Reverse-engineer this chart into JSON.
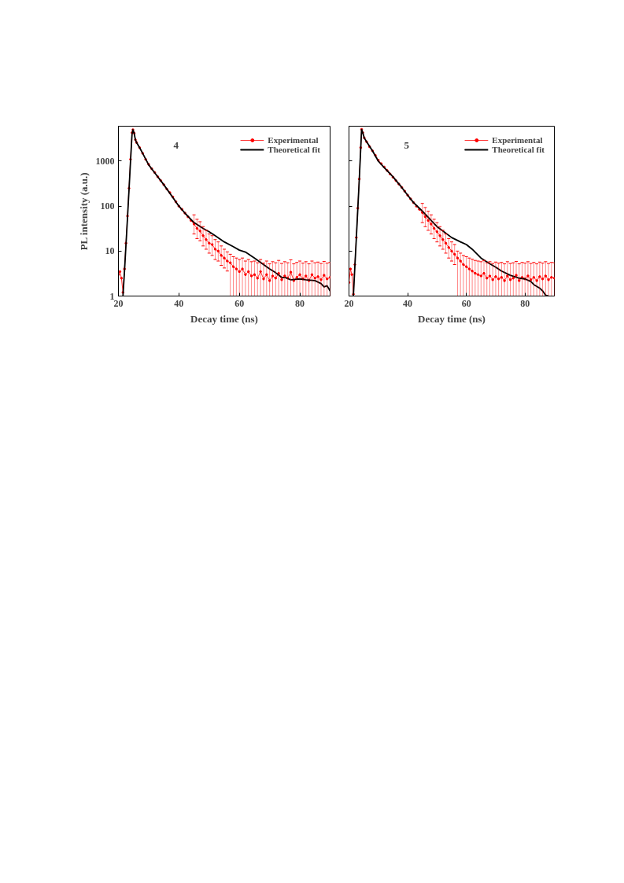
{
  "chart_data": [
    {
      "type": "line",
      "annotations": [
        "4"
      ],
      "xlabel": "Decay time (ns)",
      "ylabel": "PL intensity (a.u.)",
      "log": true,
      "xlim": [
        20,
        90
      ],
      "ylim": [
        1,
        6000
      ],
      "xticks": [
        20,
        40,
        60,
        80
      ],
      "yticks": [
        1,
        10,
        100,
        1000
      ],
      "legend": "top right",
      "grid": false,
      "series": [
        {
          "name": "Experimental",
          "color": "#ff0000",
          "marker": "circle",
          "x": [
            20,
            20.5,
            21,
            21.5,
            22,
            22.5,
            23,
            23.5,
            24,
            24.5,
            24.8,
            25.2,
            25.6,
            26,
            27,
            28,
            29,
            30,
            31,
            32,
            33,
            34,
            35,
            36,
            37,
            38,
            39,
            40,
            41,
            42,
            43,
            44,
            45,
            46,
            47,
            48,
            49,
            50,
            51,
            52,
            53,
            54,
            55,
            56,
            57,
            58,
            59,
            60,
            61,
            62,
            63,
            64,
            65,
            66,
            67,
            68,
            69,
            70,
            71,
            72,
            73,
            74,
            75,
            76,
            77,
            78,
            79,
            80,
            81,
            82,
            83,
            84,
            85,
            86,
            87,
            88,
            89,
            90
          ],
          "values": [
            3,
            3.5,
            2.5,
            1.2,
            4,
            15,
            60,
            250,
            1100,
            4300,
            5000,
            4200,
            3000,
            2600,
            2000,
            1500,
            1100,
            850,
            680,
            560,
            450,
            370,
            300,
            240,
            200,
            160,
            125,
            100,
            85,
            70,
            58,
            48,
            40,
            32,
            28,
            22,
            18,
            15,
            14,
            11,
            10,
            8,
            7,
            6,
            5.5,
            4.5,
            4,
            3.5,
            4,
            3,
            3.5,
            2.8,
            3,
            2.5,
            3.5,
            2.4,
            3,
            2.2,
            2.8,
            2.5,
            3.2,
            2.3,
            2.8,
            2.5,
            3.4,
            2.2,
            2.6,
            3,
            2.4,
            2.8,
            2.2,
            3,
            2.5,
            2.7,
            2.3,
            2.9,
            2.4,
            2.6
          ],
          "errors": [
            null,
            null,
            null,
            null,
            null,
            null,
            null,
            null,
            null,
            null,
            null,
            null,
            null,
            null,
            null,
            null,
            null,
            null,
            null,
            null,
            null,
            null,
            null,
            null,
            null,
            null,
            null,
            null,
            null,
            null,
            null,
            null,
            [
              24,
              64
            ],
            [
              19,
              51
            ],
            [
              17,
              45
            ],
            [
              13,
              35
            ],
            [
              11,
              29
            ],
            [
              9,
              24
            ],
            [
              8,
              22
            ],
            [
              6.5,
              18
            ],
            [
              6,
              16
            ],
            [
              4.8,
              13
            ],
            [
              4.2,
              11
            ],
            [
              3.6,
              9.6
            ],
            [
              1,
              8.5
            ],
            [
              1,
              7.5
            ],
            [
              1,
              7
            ],
            [
              1,
              6.5
            ],
            [
              1,
              7
            ],
            [
              1,
              6
            ],
            [
              1,
              6.5
            ],
            [
              1,
              5.8
            ],
            [
              1,
              6
            ],
            [
              1,
              5.5
            ],
            [
              1,
              6.5
            ],
            [
              1,
              5.4
            ],
            [
              1,
              6
            ],
            [
              1,
              5.2
            ],
            [
              1,
              5.8
            ],
            [
              1,
              5.5
            ],
            [
              1,
              6.2
            ],
            [
              1,
              5.3
            ],
            [
              1,
              5.8
            ],
            [
              1,
              5.5
            ],
            [
              1,
              6.4
            ],
            [
              1,
              5.2
            ],
            [
              1,
              5.6
            ],
            [
              1,
              6
            ],
            [
              1,
              5.4
            ],
            [
              1,
              5.8
            ],
            [
              1,
              5.2
            ],
            [
              1,
              6
            ],
            [
              1,
              5.5
            ],
            [
              1,
              5.7
            ],
            [
              1,
              5.3
            ],
            [
              1,
              5.9
            ],
            [
              1,
              5.4
            ],
            [
              1,
              5.6
            ]
          ]
        },
        {
          "name": "Theoretical fit",
          "color": "#000000",
          "marker": "none",
          "x": [
            21.5,
            22,
            22.5,
            23,
            23.5,
            24,
            24.5,
            24.8,
            25.2,
            25.6,
            26,
            27,
            28,
            30,
            32,
            35,
            38,
            40,
            42,
            45,
            48,
            50,
            52,
            55,
            58,
            60,
            62,
            65,
            68,
            70,
            72,
            74,
            75,
            77,
            80,
            82,
            85,
            87,
            88,
            89,
            90
          ],
          "values": [
            1,
            3.5,
            14,
            55,
            230,
            1000,
            4000,
            5000,
            4200,
            3000,
            2600,
            2000,
            1500,
            830,
            550,
            300,
            155,
            100,
            70,
            43,
            32,
            27,
            22,
            16,
            12.5,
            10.5,
            9.5,
            7,
            5,
            4,
            3.3,
            2.6,
            2.6,
            2.3,
            2.4,
            2.3,
            2.2,
            1.9,
            1.6,
            1.7,
            1.3
          ]
        }
      ]
    },
    {
      "type": "line",
      "annotations": [
        "5"
      ],
      "xlabel": "Decay time (ns)",
      "log": true,
      "xlim": [
        20,
        90
      ],
      "ylim": [
        1,
        6000
      ],
      "xticks": [
        20,
        40,
        60,
        80
      ],
      "yticks": [
        1,
        10,
        100,
        1000
      ],
      "tick_labels": "x",
      "legend": "top right",
      "grid": false,
      "series": [
        {
          "name": "Experimental",
          "color": "#ff0000",
          "marker": "circle",
          "x": [
            20,
            20.5,
            21,
            21.5,
            22,
            22.5,
            23,
            23.5,
            24,
            24.3,
            24.7,
            25.2,
            26,
            27,
            28,
            29,
            30,
            31,
            32,
            33,
            34,
            35,
            36,
            37,
            38,
            39,
            40,
            41,
            42,
            43,
            44,
            45,
            46,
            47,
            48,
            49,
            50,
            51,
            52,
            53,
            54,
            55,
            56,
            57,
            58,
            59,
            60,
            61,
            62,
            63,
            64,
            65,
            66,
            67,
            68,
            69,
            70,
            71,
            72,
            73,
            74,
            75,
            76,
            77,
            78,
            79,
            80,
            81,
            82,
            83,
            84,
            85,
            86,
            87,
            88,
            89,
            90
          ],
          "values": [
            2,
            4,
            3,
            1.1,
            5,
            20,
            90,
            400,
            2000,
            5100,
            4300,
            3300,
            2700,
            2100,
            1700,
            1350,
            1050,
            880,
            740,
            620,
            520,
            440,
            370,
            310,
            260,
            215,
            175,
            145,
            120,
            100,
            85,
            72,
            58,
            48,
            40,
            32,
            27,
            22,
            18,
            15,
            12,
            10,
            8.5,
            7,
            6,
            5,
            4.5,
            4,
            3.6,
            3.2,
            3,
            2.8,
            3.2,
            2.5,
            2.8,
            2.3,
            2.7,
            2.4,
            2.6,
            2.2,
            2.8,
            2.3,
            2.5,
            2.9,
            2.2,
            2.6,
            2.4,
            2.8,
            2.3,
            2.6,
            2.2,
            2.7,
            2.4,
            2.8,
            2.3,
            2.6,
            2.5
          ],
          "errors": [
            null,
            null,
            null,
            null,
            null,
            null,
            null,
            null,
            null,
            null,
            null,
            null,
            null,
            null,
            null,
            null,
            null,
            null,
            null,
            null,
            null,
            null,
            null,
            null,
            null,
            null,
            null,
            null,
            null,
            null,
            null,
            [
              43,
              115
            ],
            [
              35,
              93
            ],
            [
              29,
              77
            ],
            [
              24,
              64
            ],
            [
              19,
              51
            ],
            [
              16,
              43
            ],
            [
              13,
              35
            ],
            [
              11,
              29
            ],
            [
              9,
              24
            ],
            [
              7,
              19
            ],
            [
              6,
              16
            ],
            [
              5,
              14
            ],
            [
              1,
              10
            ],
            [
              1,
              9
            ],
            [
              1,
              8
            ],
            [
              1,
              7.5
            ],
            [
              1,
              7
            ],
            [
              1,
              6.6
            ],
            [
              1,
              6.2
            ],
            [
              1,
              6
            ],
            [
              1,
              5.8
            ],
            [
              1,
              6.2
            ],
            [
              1,
              5.5
            ],
            [
              1,
              5.8
            ],
            [
              1,
              5.3
            ],
            [
              1,
              5.7
            ],
            [
              1,
              5.4
            ],
            [
              1,
              5.6
            ],
            [
              1,
              5.2
            ],
            [
              1,
              5.8
            ],
            [
              1,
              5.3
            ],
            [
              1,
              5.5
            ],
            [
              1,
              5.9
            ],
            [
              1,
              5.2
            ],
            [
              1,
              5.6
            ],
            [
              1,
              5.4
            ],
            [
              1,
              5.8
            ],
            [
              1,
              5.3
            ],
            [
              1,
              5.6
            ],
            [
              1,
              5.2
            ],
            [
              1,
              5.7
            ],
            [
              1,
              5.4
            ],
            [
              1,
              5.8
            ],
            [
              1,
              5.3
            ],
            [
              1,
              5.6
            ],
            [
              1,
              5.5
            ]
          ]
        },
        {
          "name": "Theoretical fit",
          "color": "#000000",
          "marker": "none",
          "x": [
            21.5,
            22,
            22.5,
            23,
            23.5,
            24,
            24.3,
            24.7,
            25.2,
            26,
            28,
            30,
            32,
            35,
            38,
            40,
            42,
            45,
            48,
            50,
            52,
            55,
            58,
            60,
            62,
            65,
            68,
            70,
            72,
            75,
            78,
            80,
            82,
            83,
            85,
            86,
            87,
            88
          ],
          "values": [
            1,
            4.5,
            19,
            85,
            380,
            1900,
            5100,
            4300,
            3300,
            2700,
            1700,
            1000,
            720,
            450,
            260,
            175,
            120,
            78,
            48,
            35,
            28,
            20,
            16,
            14,
            11,
            7,
            5.2,
            4.4,
            3.6,
            2.9,
            2.5,
            2.4,
            2.1,
            1.8,
            1.5,
            1.3,
            1.05,
            1
          ]
        }
      ]
    }
  ]
}
